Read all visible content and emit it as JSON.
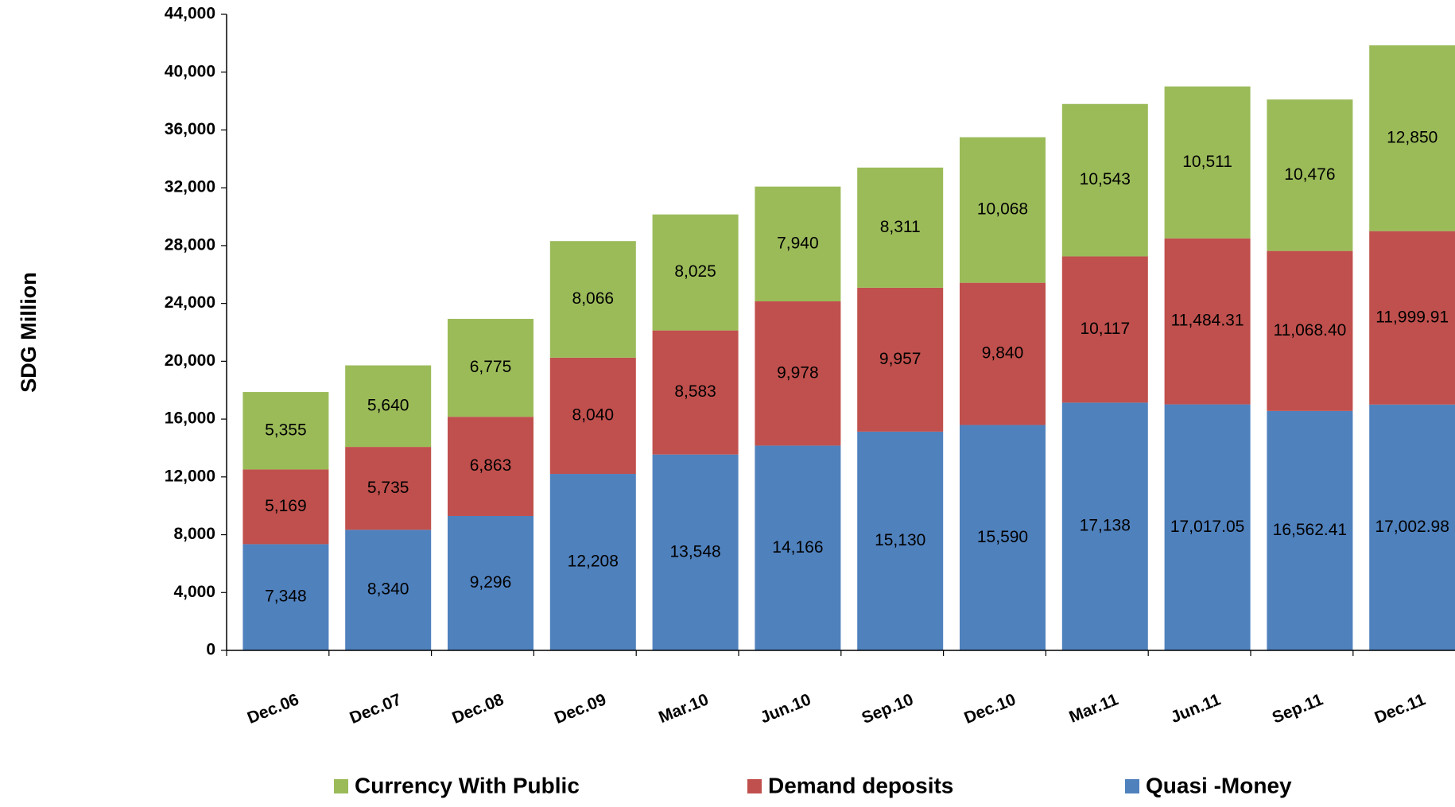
{
  "chart_data": {
    "type": "bar",
    "stacked": true,
    "title": "",
    "xlabel": "",
    "ylabel": "SDG Million",
    "ylim": [
      0,
      44000
    ],
    "yticks": [
      0,
      4000,
      8000,
      12000,
      16000,
      20000,
      24000,
      28000,
      32000,
      36000,
      40000,
      44000
    ],
    "ytick_labels": [
      "0",
      "4,000",
      "8,000",
      "12,000",
      "16,000",
      "20,000",
      "24,000",
      "28,000",
      "32,000",
      "36,000",
      "40,000",
      "44,000"
    ],
    "grid": false,
    "legend_position": "bottom",
    "categories": [
      "Dec.06",
      "Dec.07",
      "Dec.08",
      "Dec.09",
      "Mar.10",
      "Jun.10",
      "Sep.10",
      "Dec.10",
      "Mar.11",
      "Jun.11",
      "Sep.11",
      "Dec.11"
    ],
    "series": [
      {
        "name": "Quasi -Money",
        "color": "#4F81BD",
        "values": [
          7348,
          8340,
          9296,
          12208,
          13548,
          14166,
          15130,
          15590,
          17138,
          17017.05,
          16562.41,
          17002.98
        ],
        "labels": [
          "7,348",
          "8,340",
          "9,296",
          "12,208",
          "13,548",
          "14,166",
          "15,130",
          "15,590",
          "17,138",
          "17,017.05",
          "16,562.41",
          "17,002.98"
        ]
      },
      {
        "name": "Demand deposits",
        "color": "#C0504D",
        "values": [
          5169,
          5735,
          6863,
          8040,
          8583,
          9978,
          9957,
          9840,
          10117,
          11484.31,
          11068.4,
          11999.91
        ],
        "labels": [
          "5,169",
          "5,735",
          "6,863",
          "8,040",
          "8,583",
          "9,978",
          "9,957",
          "9,840",
          "10,117",
          "11,484.31",
          "11,068.40",
          "11,999.91"
        ]
      },
      {
        "name": "Currency With Public",
        "color": "#9BBB59",
        "values": [
          5355,
          5640,
          6775,
          8066,
          8025,
          7940,
          8311,
          10068,
          10543,
          10511,
          10476,
          12850
        ],
        "labels": [
          "5,355",
          "5,640",
          "6,775",
          "8,066",
          "8,025",
          "7,940",
          "8,311",
          "10,068",
          "10,543",
          "10,511",
          "10,476",
          "12,850"
        ]
      }
    ],
    "legend_order": [
      "Currency With Public",
      "Demand deposits",
      "Quasi -Money"
    ]
  }
}
